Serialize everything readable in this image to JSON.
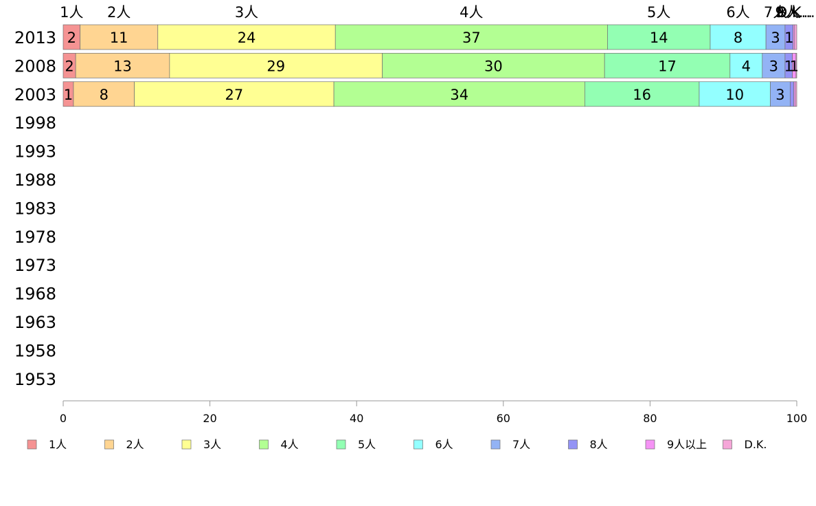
{
  "chart_data": {
    "type": "bar",
    "orientation": "horizontal",
    "stacked": true,
    "title": "",
    "xlabel": "",
    "ylabel": "",
    "xlim": [
      0,
      100
    ],
    "x_ticks": [
      "0",
      "20",
      "40",
      "60",
      "80",
      "100"
    ],
    "categories": [
      "2013",
      "2008",
      "2003",
      "1998",
      "1993",
      "1988",
      "1983",
      "1978",
      "1973",
      "1968",
      "1963",
      "1958",
      "1953"
    ],
    "top_labels": [
      "1人",
      "2人",
      "3人",
      "4人",
      "5人",
      "6人",
      "7人",
      "8人",
      "9人...",
      "D.K..."
    ],
    "grid": false,
    "legend_position": "bottom",
    "series": [
      {
        "name": "1人",
        "color": "#f59393",
        "values": [
          2.3,
          1.7,
          1.4,
          null,
          null,
          null,
          null,
          null,
          null,
          null,
          null,
          null,
          null
        ],
        "labels": [
          "2",
          "2",
          "1"
        ]
      },
      {
        "name": "2人",
        "color": "#ffd592",
        "values": [
          10.6,
          12.8,
          8.3,
          null,
          null,
          null,
          null,
          null,
          null,
          null,
          null,
          null,
          null
        ],
        "labels": [
          "11",
          "13",
          "8"
        ]
      },
      {
        "name": "3人",
        "color": "#ffff93",
        "values": [
          24.2,
          29.0,
          27.2,
          null,
          null,
          null,
          null,
          null,
          null,
          null,
          null,
          null,
          null
        ],
        "labels": [
          "24",
          "29",
          "27"
        ]
      },
      {
        "name": "4人",
        "color": "#b3ff93",
        "values": [
          37.1,
          30.3,
          34.2,
          null,
          null,
          null,
          null,
          null,
          null,
          null,
          null,
          null,
          null
        ],
        "labels": [
          "37",
          "30",
          "34"
        ]
      },
      {
        "name": "5人",
        "color": "#93ffb3",
        "values": [
          14.0,
          17.1,
          15.6,
          null,
          null,
          null,
          null,
          null,
          null,
          null,
          null,
          null,
          null
        ],
        "labels": [
          "14",
          "17",
          "16"
        ]
      },
      {
        "name": "6人",
        "color": "#93ffff",
        "values": [
          7.6,
          4.4,
          9.7,
          null,
          null,
          null,
          null,
          null,
          null,
          null,
          null,
          null,
          null
        ],
        "labels": [
          "8",
          "4",
          "10"
        ]
      },
      {
        "name": "7人",
        "color": "#93b3f5",
        "values": [
          2.6,
          3.1,
          2.7,
          null,
          null,
          null,
          null,
          null,
          null,
          null,
          null,
          null,
          null
        ],
        "labels": [
          "3",
          "3",
          "3"
        ]
      },
      {
        "name": "8人",
        "color": "#9393f5",
        "values": [
          1.1,
          1.0,
          0.5,
          null,
          null,
          null,
          null,
          null,
          null,
          null,
          null,
          null,
          null
        ],
        "labels": [
          "1",
          "1",
          ""
        ]
      },
      {
        "name": "9人以上",
        "color": "#f593f5",
        "values": [
          0.2,
          0.5,
          0.2,
          null,
          null,
          null,
          null,
          null,
          null,
          null,
          null,
          null,
          null
        ],
        "labels": [
          "",
          "1",
          ""
        ]
      },
      {
        "name": "D.K.",
        "color": "#f5a6d8",
        "values": [
          0.3,
          0.1,
          0.2,
          null,
          null,
          null,
          null,
          null,
          null,
          null,
          null,
          null,
          null
        ],
        "labels": [
          "",
          "",
          ""
        ]
      }
    ]
  }
}
